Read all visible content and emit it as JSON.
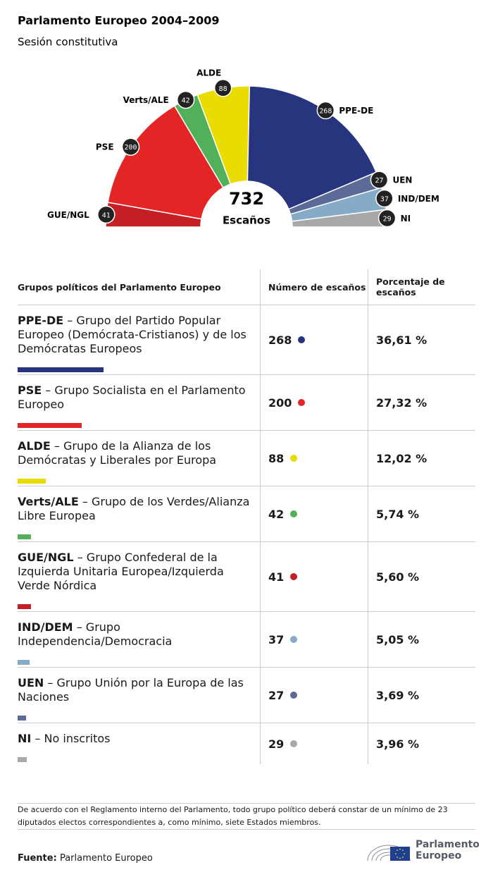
{
  "chart_data": {
    "type": "pie",
    "half": true,
    "title": "Parlamento Europeo 2004–2009",
    "subtitle": "Sesión constitutiva",
    "categories": [
      "GUE/NGL",
      "PSE",
      "Verts/ALE",
      "ALDE",
      "PPE-DE",
      "UEN",
      "IND/DEM",
      "NI"
    ],
    "values": [
      41,
      200,
      42,
      88,
      268,
      27,
      37,
      29
    ],
    "colors": [
      "#c41f25",
      "#e32526",
      "#52b05a",
      "#e8dc00",
      "#27347e",
      "#5b6a96",
      "#85abc6",
      "#a8a8a8"
    ],
    "total": 732,
    "center_label": "Escaños"
  },
  "table": {
    "headers": [
      "Grupos políticos del Parlamento Europeo",
      "Número de escaños",
      "Porcentaje de escaños"
    ],
    "rows": [
      {
        "abbr": "PPE-DE",
        "desc": "– Grupo del Partido Popular Europeo (Demócrata-Cristianos) y de los Demócratas Europeos",
        "seats": 268,
        "percent": "36,61 %",
        "color": "#27347e"
      },
      {
        "abbr": "PSE",
        "desc": "– Grupo Socialista en el Parlamento Europeo",
        "seats": 200,
        "percent": "27,32 %",
        "color": "#e32526"
      },
      {
        "abbr": "ALDE",
        "desc": "– Grupo de la Alianza de los Demócratas y Liberales por Europa",
        "seats": 88,
        "percent": "12,02 %",
        "color": "#e8dc00"
      },
      {
        "abbr": "Verts/ALE",
        "desc": "– Grupo de los Verdes/Alianza Libre Europea",
        "seats": 42,
        "percent": "5,74 %",
        "color": "#52b05a"
      },
      {
        "abbr": "GUE/NGL",
        "desc": "– Grupo Confederal de la Izquierda Unitaria Europea/Izquierda Verde Nórdica",
        "seats": 41,
        "percent": "5,60 %",
        "color": "#c41f25"
      },
      {
        "abbr": "IND/DEM",
        "desc": "– Grupo Independencia/Democracia",
        "seats": 37,
        "percent": "5,05 %",
        "color": "#85abc6"
      },
      {
        "abbr": "UEN",
        "desc": "– Grupo Unión por la Europa de las Naciones",
        "seats": 27,
        "percent": "3,69 %",
        "color": "#5b6a96"
      },
      {
        "abbr": "NI",
        "desc": "– No inscritos",
        "seats": 29,
        "percent": "3,96 %",
        "color": "#a8a8a8"
      }
    ]
  },
  "footnote": "De acuerdo con el Reglamento interno del Parlamento, todo grupo político deberá constar de un mínimo de 23 diputados electos correspondientes a, como mínimo, siete Estados miembros.",
  "source_label": "Fuente:",
  "source": "Parlamento Europeo",
  "logo": "Parlamento Europeo"
}
